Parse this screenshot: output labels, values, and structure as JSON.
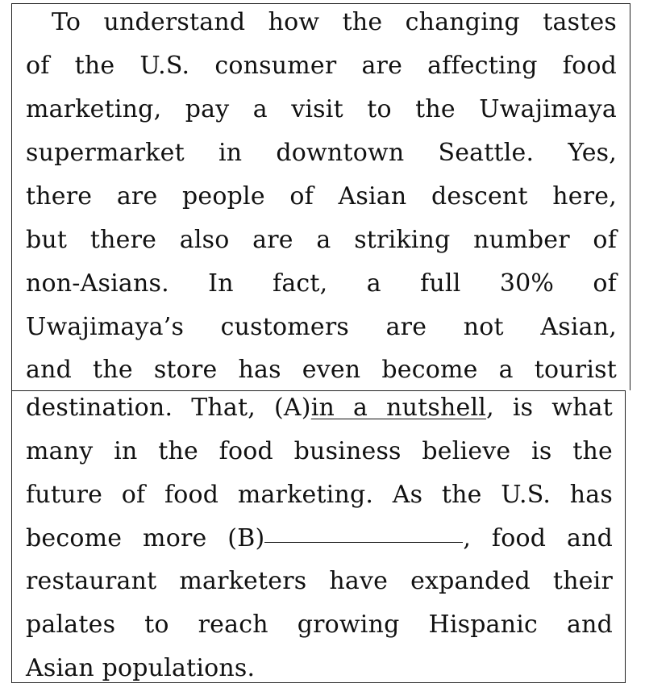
{
  "passage": {
    "lines": [
      "To understand how the changing tastes",
      "of the U.S. consumer are affecting food",
      "marketing, pay a visit to the Uwajimaya",
      "supermarket in downtown Seattle. Yes,",
      "there are people of Asian descent here,",
      "but there also are a striking number of",
      "non-Asians. In fact, a full 30% of",
      "Uwajimaya’s customers are not Asian,",
      "and the store has even become a tourist"
    ],
    "line10": {
      "before": "destination. That, (A)",
      "underlined": "in a nutshell",
      "after": ", is what"
    },
    "line11": "many in the food business believe is the",
    "line12": "future of food marketing. As the U.S. has",
    "line13": {
      "before": "become more (B)",
      "after": ", food and"
    },
    "line14": "restaurant marketers have expanded their",
    "line15": "palates to reach growing Hispanic and",
    "line16": "Asian populations."
  }
}
